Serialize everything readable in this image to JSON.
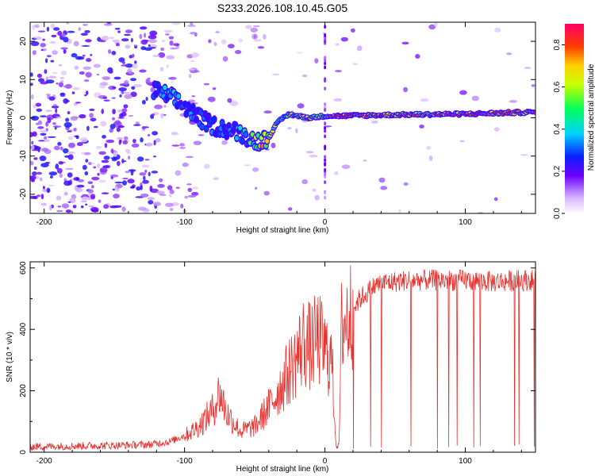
{
  "title": "S233.2026.108.10.45.G05",
  "chart_data": [
    {
      "type": "heatmap",
      "xlabel": "Height of straight line (km)",
      "ylabel": "Frequency (Hz)",
      "xlim": [
        -210,
        150
      ],
      "ylim": [
        -25,
        25
      ],
      "xticks": [
        -200,
        -100,
        0,
        100
      ],
      "xtick_labels": [
        "-200",
        "-100",
        "0",
        "100"
      ],
      "yticks": [
        -20,
        -10,
        0,
        10,
        20
      ],
      "ytick_labels": [
        "-20",
        "-10",
        "0",
        "10",
        "20"
      ],
      "colorbar": {
        "label": "Normalized spectral amplitude",
        "range": [
          0,
          0.9
        ],
        "ticks": [
          0,
          0.2,
          0.4,
          0.6,
          0.8
        ],
        "tick_labels": [
          "0.0",
          "0.2",
          "0.4",
          "0.6",
          "0.8"
        ]
      },
      "ridge": {
        "description_x": [
          -120,
          -110,
          -100,
          -90,
          -80,
          -70,
          -60,
          -50,
          -45,
          -40,
          -35,
          -30,
          -25,
          -20,
          -10,
          0,
          10,
          50,
          100,
          150
        ],
        "frequency": [
          7,
          5.5,
          3,
          0,
          -2,
          -3,
          -4,
          -6,
          -6,
          -5,
          -2,
          0,
          1,
          0.5,
          0,
          0.5,
          0.5,
          0.8,
          1,
          1.5
        ],
        "amplitude": [
          0.3,
          0.4,
          0.3,
          0.3,
          0.3,
          0.3,
          0.35,
          0.5,
          0.7,
          0.6,
          0.5,
          0.5,
          0.6,
          0.6,
          0.7,
          0.5,
          0.8,
          0.7,
          0.8,
          0.7
        ]
      }
    },
    {
      "type": "line",
      "xlabel": "Height of straight line (km)",
      "ylabel": "SNR (10 * v/v)",
      "xlim": [
        -210,
        150
      ],
      "ylim": [
        0,
        620
      ],
      "xticks": [
        -200,
        -100,
        0,
        100
      ],
      "xtick_labels": [
        "-200",
        "-100",
        "0",
        "100"
      ],
      "yticks": [
        0,
        200,
        400,
        600
      ],
      "ytick_labels": [
        "0",
        "200",
        "400",
        "600"
      ],
      "series": [
        {
          "name": "SNR",
          "color": "#e8312e",
          "x": [
            -210,
            -180,
            -150,
            -125,
            -110,
            -100,
            -90,
            -80,
            -75,
            -70,
            -60,
            -50,
            -40,
            -30,
            -20,
            -15,
            -10,
            -5,
            0,
            5,
            8,
            10,
            12,
            15,
            20,
            25,
            30,
            35,
            40,
            50,
            60,
            80,
            100,
            120,
            140,
            150
          ],
          "y": [
            18,
            20,
            22,
            25,
            35,
            55,
            85,
            140,
            200,
            130,
            70,
            85,
            150,
            230,
            320,
            370,
            350,
            380,
            340,
            300,
            20,
            20,
            430,
            440,
            470,
            500,
            520,
            540,
            550,
            555,
            560,
            560,
            560,
            555,
            560,
            560
          ]
        }
      ]
    }
  ]
}
